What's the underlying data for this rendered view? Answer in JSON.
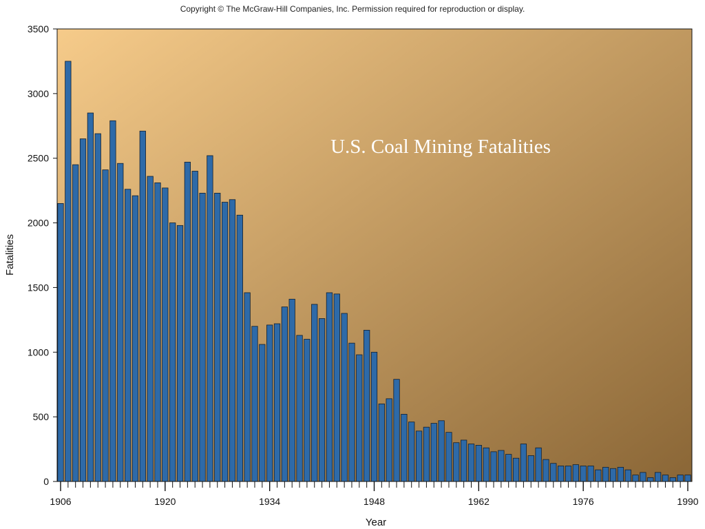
{
  "copyright": "Copyright © The McGraw-Hill Companies, Inc. Permission required for reproduction or display.",
  "colors": {
    "bar_fill": "#2e6aa8",
    "bar_stroke": "#0e1e30",
    "plot_gradient_start": "#f6cb8a",
    "plot_gradient_end": "#8a6636"
  },
  "chart_data": {
    "type": "bar",
    "title": "U.S. Coal Mining Fatalities",
    "xlabel": "Year",
    "ylabel": "Fatalities",
    "ylim": [
      0,
      3500
    ],
    "yticks": [
      0,
      500,
      1000,
      1500,
      2000,
      2500,
      3000,
      3500
    ],
    "xticks": [
      1906,
      1920,
      1934,
      1948,
      1962,
      1976,
      1990
    ],
    "grid": false,
    "categories": [
      1906,
      1907,
      1908,
      1909,
      1910,
      1911,
      1912,
      1913,
      1914,
      1915,
      1916,
      1917,
      1918,
      1919,
      1920,
      1921,
      1922,
      1923,
      1924,
      1925,
      1926,
      1927,
      1928,
      1929,
      1930,
      1931,
      1932,
      1933,
      1934,
      1935,
      1936,
      1937,
      1938,
      1939,
      1940,
      1941,
      1942,
      1943,
      1944,
      1945,
      1946,
      1947,
      1948,
      1949,
      1950,
      1951,
      1952,
      1953,
      1954,
      1955,
      1956,
      1957,
      1958,
      1959,
      1960,
      1961,
      1962,
      1963,
      1964,
      1965,
      1966,
      1967,
      1968,
      1969,
      1970,
      1971,
      1972,
      1973,
      1974,
      1975,
      1976,
      1977,
      1978,
      1979,
      1980,
      1981,
      1982,
      1983,
      1984,
      1985,
      1986,
      1987,
      1988,
      1989,
      1990
    ],
    "values": [
      2150,
      3250,
      2450,
      2650,
      2850,
      2690,
      2410,
      2790,
      2460,
      2260,
      2210,
      2710,
      2360,
      2310,
      2270,
      2000,
      1980,
      2470,
      2400,
      2230,
      2520,
      2230,
      2160,
      2180,
      2060,
      1460,
      1200,
      1060,
      1210,
      1220,
      1350,
      1410,
      1130,
      1100,
      1370,
      1260,
      1460,
      1450,
      1300,
      1070,
      980,
      1170,
      1000,
      600,
      640,
      790,
      520,
      460,
      390,
      420,
      450,
      470,
      380,
      300,
      320,
      290,
      280,
      260,
      230,
      240,
      210,
      180,
      290,
      200,
      260,
      170,
      140,
      120,
      120,
      130,
      120,
      120,
      90,
      110,
      100,
      110,
      90,
      50,
      70,
      30,
      70,
      50,
      30,
      50,
      50
    ]
  }
}
